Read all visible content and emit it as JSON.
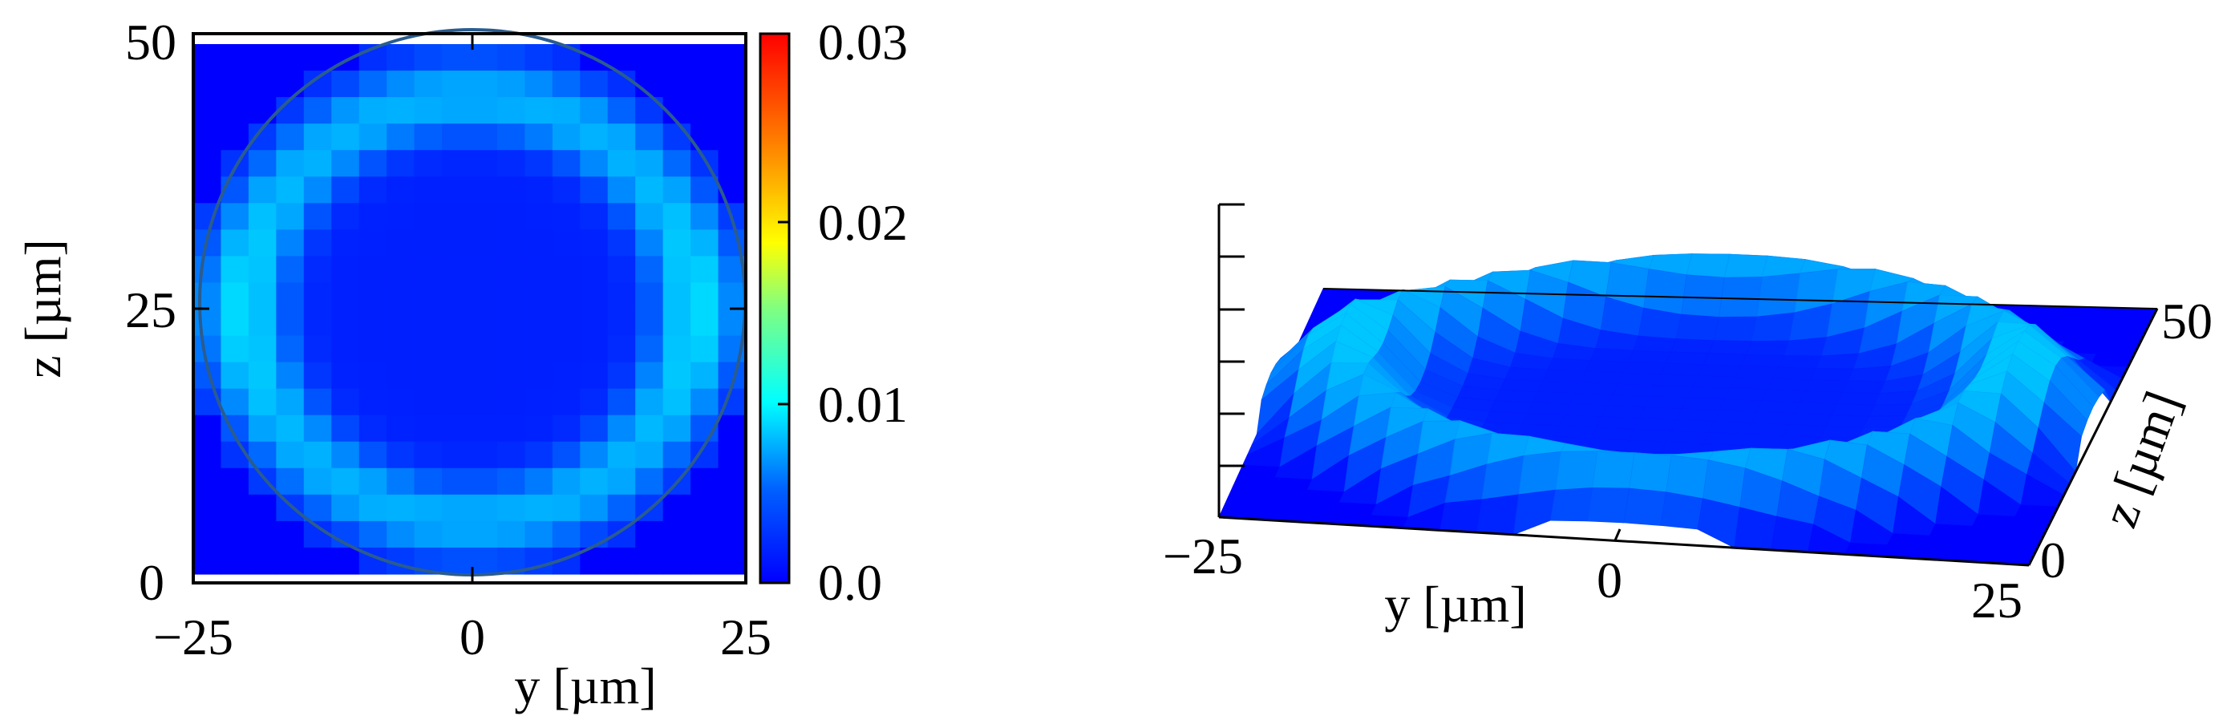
{
  "chart_data": [
    {
      "type": "heatmap",
      "title": "",
      "xlabel": "y [µm]",
      "ylabel": "z [µm]",
      "xlim": [
        -25,
        25
      ],
      "ylim": [
        0,
        50
      ],
      "x_ticks": [
        "−25",
        "0",
        "25"
      ],
      "y_ticks": [
        "0",
        "25",
        "50"
      ],
      "grid": false,
      "overlay": "circle",
      "colorbar": {
        "range": [
          0.0,
          0.03
        ],
        "ticks": [
          "0.0",
          "0.01",
          "0.02",
          "0.03"
        ],
        "colors": [
          "#0000ff",
          "#00a0ff",
          "#00ffff",
          "#80ff80",
          "#ffff00",
          "#ff8000",
          "#ff0000"
        ]
      },
      "grid_resolution": [
        20,
        20
      ],
      "values_note_levels": {
        "background": 0.0,
        "interior": 0.001,
        "ring": 0.006,
        "peak_sides": 0.011
      }
    },
    {
      "type": "surface",
      "title": "",
      "xlabel": "y [µm]",
      "ylabel": "z [µm]",
      "x_ticks": [
        "−25",
        "0",
        "25"
      ],
      "y_ticks": [
        "0",
        "50"
      ],
      "zlim": [
        0,
        0.03
      ],
      "grid": false
    }
  ]
}
